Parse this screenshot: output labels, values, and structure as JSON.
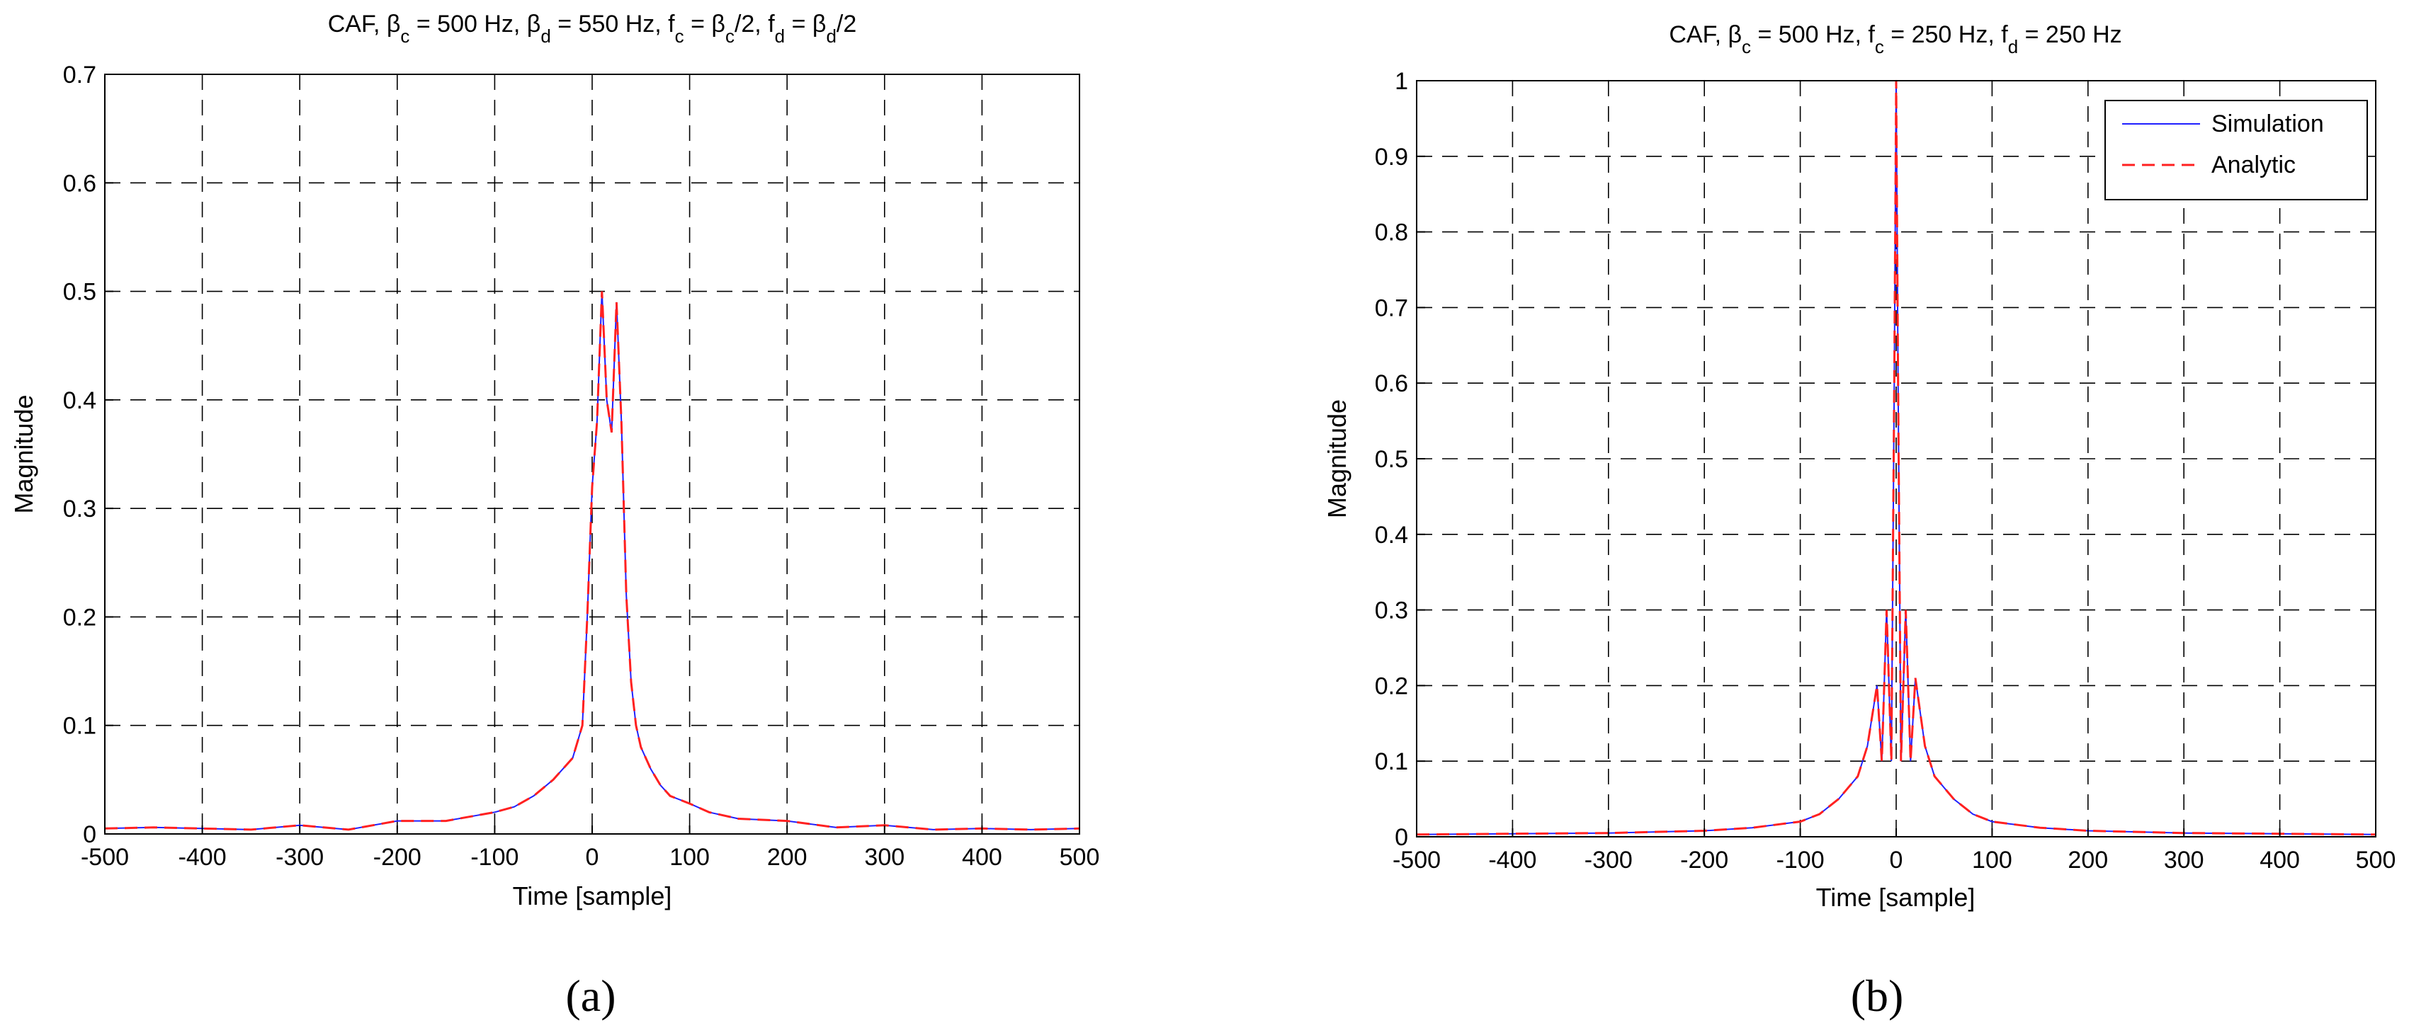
{
  "chart_data": [
    {
      "type": "line",
      "title": {
        "parts": [
          {
            "t": "CAF, β"
          },
          {
            "t": "c",
            "sub": true
          },
          {
            "t": " = 500 Hz, β"
          },
          {
            "t": "d",
            "sub": true
          },
          {
            "t": " = 550 Hz, f"
          },
          {
            "t": "c",
            "sub": true
          },
          {
            "t": " = β"
          },
          {
            "t": "c",
            "sub": true
          },
          {
            "t": "/2, f"
          },
          {
            "t": "d",
            "sub": true
          },
          {
            "t": " = β"
          },
          {
            "t": "d",
            "sub": true
          },
          {
            "t": "/2"
          }
        ]
      },
      "xlabel": "Time [sample]",
      "ylabel": "Magnitude",
      "xlim": [
        -500,
        500
      ],
      "ylim": [
        0,
        0.7
      ],
      "xticks": [
        -500,
        -400,
        -300,
        -200,
        -100,
        0,
        100,
        200,
        300,
        400,
        500
      ],
      "yticks": [
        0,
        0.1,
        0.2,
        0.3,
        0.4,
        0.5,
        0.6,
        0.7
      ],
      "ytick_labels": [
        "0",
        "0.1",
        "0.2",
        "0.3",
        "0.4",
        "0.5",
        "0.6",
        "0.7"
      ],
      "grid": true,
      "panel_label": "(a)",
      "series": [
        {
          "color": "#2020ff",
          "dash": "solid",
          "x": [
            -500,
            -450,
            -400,
            -350,
            -300,
            -250,
            -200,
            -150,
            -100,
            -80,
            -60,
            -40,
            -20,
            -10,
            -5,
            0,
            5,
            10,
            15,
            20,
            25,
            30,
            35,
            40,
            45,
            50,
            60,
            70,
            80,
            100,
            120,
            150,
            200,
            250,
            300,
            350,
            400,
            450,
            500
          ],
          "y": [
            0.005,
            0.006,
            0.005,
            0.004,
            0.008,
            0.004,
            0.012,
            0.012,
            0.02,
            0.025,
            0.035,
            0.05,
            0.07,
            0.1,
            0.2,
            0.32,
            0.38,
            0.5,
            0.4,
            0.37,
            0.49,
            0.38,
            0.22,
            0.14,
            0.1,
            0.08,
            0.06,
            0.045,
            0.035,
            0.028,
            0.02,
            0.014,
            0.012,
            0.006,
            0.008,
            0.004,
            0.005,
            0.004,
            0.005
          ]
        },
        {
          "color": "#ff2020",
          "dash": "dashed",
          "x": [
            -500,
            -450,
            -400,
            -350,
            -300,
            -250,
            -200,
            -150,
            -100,
            -80,
            -60,
            -40,
            -20,
            -10,
            -5,
            0,
            5,
            10,
            15,
            20,
            25,
            30,
            35,
            40,
            45,
            50,
            60,
            70,
            80,
            100,
            120,
            150,
            200,
            250,
            300,
            350,
            400,
            450,
            500
          ],
          "y": [
            0.005,
            0.006,
            0.005,
            0.004,
            0.008,
            0.004,
            0.012,
            0.012,
            0.02,
            0.025,
            0.035,
            0.05,
            0.07,
            0.1,
            0.2,
            0.32,
            0.38,
            0.5,
            0.4,
            0.37,
            0.49,
            0.38,
            0.22,
            0.14,
            0.1,
            0.08,
            0.06,
            0.045,
            0.035,
            0.028,
            0.02,
            0.014,
            0.012,
            0.006,
            0.008,
            0.004,
            0.005,
            0.004,
            0.005
          ]
        }
      ]
    },
    {
      "type": "line",
      "title": {
        "parts": [
          {
            "t": "CAF, β"
          },
          {
            "t": "c",
            "sub": true
          },
          {
            "t": " = 500 Hz, f"
          },
          {
            "t": "c",
            "sub": true
          },
          {
            "t": " = 250 Hz, f"
          },
          {
            "t": "d",
            "sub": true
          },
          {
            "t": " = 250 Hz"
          }
        ]
      },
      "xlabel": "Time [sample]",
      "ylabel": "Magnitude",
      "xlim": [
        -500,
        500
      ],
      "ylim": [
        0,
        1
      ],
      "xticks": [
        -500,
        -400,
        -300,
        -200,
        -100,
        0,
        100,
        200,
        300,
        400,
        500
      ],
      "yticks": [
        0,
        0.1,
        0.2,
        0.3,
        0.4,
        0.5,
        0.6,
        0.7,
        0.8,
        0.9,
        1
      ],
      "ytick_labels": [
        "0",
        "0.1",
        "0.2",
        "0.3",
        "0.4",
        "0.5",
        "0.6",
        "0.7",
        "0.8",
        "0.9",
        "1"
      ],
      "grid": true,
      "legend": "top-right",
      "panel_label": "(b)",
      "series": [
        {
          "name": "Simulation",
          "color": "#2020ff",
          "dash": "solid",
          "x": [
            -500,
            -400,
            -300,
            -200,
            -150,
            -100,
            -80,
            -60,
            -40,
            -30,
            -20,
            -15,
            -10,
            -5,
            -2,
            0,
            2,
            5,
            10,
            15,
            20,
            30,
            40,
            60,
            80,
            100,
            150,
            200,
            300,
            400,
            500
          ],
          "y": [
            0.003,
            0.004,
            0.005,
            0.008,
            0.012,
            0.02,
            0.03,
            0.05,
            0.08,
            0.12,
            0.2,
            0.1,
            0.3,
            0.1,
            0.6,
            1.0,
            0.6,
            0.1,
            0.3,
            0.1,
            0.21,
            0.12,
            0.08,
            0.05,
            0.03,
            0.02,
            0.012,
            0.008,
            0.005,
            0.004,
            0.003
          ]
        },
        {
          "name": "Analytic",
          "color": "#ff2020",
          "dash": "dashed",
          "x": [
            -500,
            -400,
            -300,
            -200,
            -150,
            -100,
            -80,
            -60,
            -40,
            -30,
            -20,
            -15,
            -10,
            -5,
            -2,
            0,
            2,
            5,
            10,
            15,
            20,
            30,
            40,
            60,
            80,
            100,
            150,
            200,
            300,
            400,
            500
          ],
          "y": [
            0.003,
            0.004,
            0.005,
            0.008,
            0.012,
            0.02,
            0.03,
            0.05,
            0.08,
            0.12,
            0.2,
            0.1,
            0.3,
            0.1,
            0.6,
            1.0,
            0.6,
            0.1,
            0.3,
            0.1,
            0.21,
            0.12,
            0.08,
            0.05,
            0.03,
            0.02,
            0.012,
            0.008,
            0.005,
            0.004,
            0.003
          ]
        }
      ]
    }
  ]
}
